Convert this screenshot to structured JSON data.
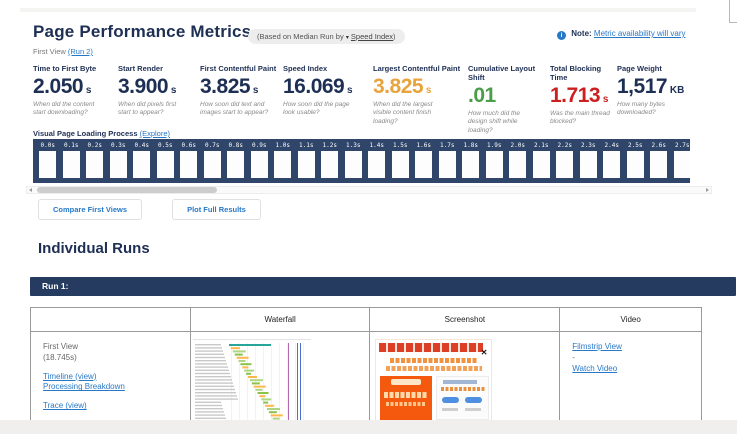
{
  "header": {
    "title": "Page Performance Metrics",
    "median_pill": {
      "prefix": "(Based on Median Run by",
      "caret": "▾",
      "link": "Speed Index",
      "suffix": ")"
    },
    "note": {
      "icon": "i",
      "label": "Note:",
      "link": "Metric availability will vary"
    },
    "subtitle": {
      "text": "First View ",
      "run_link": "(Run 2)"
    }
  },
  "metrics": {
    "items": [
      {
        "label": "Time to First Byte",
        "value": "2.050",
        "unit": "s",
        "color": "#1e2f54",
        "description": "When did the content start downloading?"
      },
      {
        "label": "Start Render",
        "value": "3.900",
        "unit": "s",
        "color": "#1e2f54",
        "description": "When did pixels first start to appear?"
      },
      {
        "label": "First Contentful Paint",
        "value": "3.825",
        "unit": "s",
        "color": "#1e2f54",
        "description": "How soon did text and images start to appear?"
      },
      {
        "label": "Speed Index",
        "value": "16.069",
        "unit": "s",
        "color": "#1e2f54",
        "description": "How soon did the page look usable?"
      },
      {
        "label": "Largest Contentful Paint",
        "value": "3.825",
        "unit": "s",
        "color": "#e8a33d",
        "description": "When did the largest visible content finish loading?"
      },
      {
        "label": "Cumulative Layout Shift",
        "value": ".01",
        "unit": "",
        "color": "#4a9e4a",
        "description": "How much did the design shift while loading?"
      },
      {
        "label": "Total Blocking Time",
        "value": "1.713",
        "unit": "s",
        "color": "#cc1f1f",
        "description": "Was the main thread blocked?"
      },
      {
        "label": "Page Weight",
        "value": "1,517",
        "unit": "KB",
        "color": "#1e2f54",
        "description": "How many bytes downloaded?"
      }
    ]
  },
  "filmstrip": {
    "section_label": "Visual Page Loading Process",
    "explore_link": "(Explore)",
    "frames": [
      "0.0s",
      "0.1s",
      "0.2s",
      "0.3s",
      "0.4s",
      "0.5s",
      "0.6s",
      "0.7s",
      "0.8s",
      "0.9s",
      "1.0s",
      "1.1s",
      "1.2s",
      "1.3s",
      "1.4s",
      "1.5s",
      "1.6s",
      "1.7s",
      "1.8s",
      "1.9s",
      "2.0s",
      "2.1s",
      "2.2s",
      "2.3s",
      "2.4s",
      "2.5s",
      "2.6s",
      "2.7s"
    ]
  },
  "actions": {
    "compare": "Compare First Views",
    "plot": "Plot Full Results"
  },
  "individual_runs": {
    "heading": "Individual Runs",
    "run_label": "Run 1:",
    "table": {
      "headers": [
        "Waterfall",
        "Screenshot",
        "Video"
      ],
      "first_view": {
        "label": "First View",
        "time": "(18.745s)",
        "links": [
          "Timeline (view)",
          "Processing Breakdown",
          "Trace (view)"
        ]
      },
      "video_links": {
        "filmstrip": "Filmstrip View",
        "separator": "-",
        "watch": "Watch Video"
      }
    }
  },
  "colors": {
    "navy_text": "#1e2f54",
    "link_blue": "#2878c8",
    "filmstrip_bg": "#2f4569",
    "run_bar_bg": "#253c60",
    "lcp_orange": "#e8a33d",
    "cls_green": "#4a9e4a",
    "tbt_red": "#cc1f1f"
  }
}
